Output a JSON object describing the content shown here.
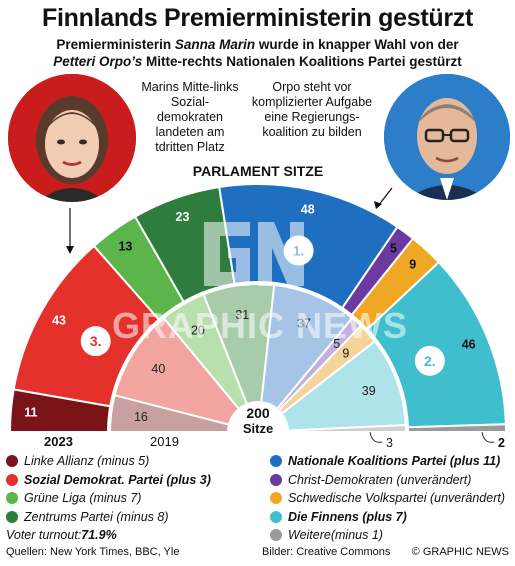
{
  "title": "Finnlands Premierministerin gestürzt",
  "subtitle": {
    "line1_pre": "Premierministerin ",
    "line1_name": "Sanna Marin",
    "line1_post": " wurde in knapper Wahl von der",
    "line2_name": "Petteri Orpo’s",
    "line2_post": " Mitte-rechts Nationalen Koalitions Partei gestürzt"
  },
  "notes": {
    "left": "Marins Mitte-links Sozial-demokraten landeten am tdritten Platz",
    "right": "Orpo steht vor komplizierter Aufgabe eine Regierungs-koalition zu bilden"
  },
  "chart_data": {
    "type": "pie",
    "variant": "parliament-semicircle",
    "title": "PARLAMENT SITZE",
    "total_seats": 200,
    "total_label": "Sitze",
    "series": [
      {
        "name": "2023",
        "parties": [
          {
            "key": "linke",
            "seats": 11
          },
          {
            "key": "sdp",
            "seats": 43
          },
          {
            "key": "gruene",
            "seats": 13
          },
          {
            "key": "zentrum",
            "seats": 23
          },
          {
            "key": "kok",
            "seats": 48
          },
          {
            "key": "kd",
            "seats": 5
          },
          {
            "key": "rkp",
            "seats": 9
          },
          {
            "key": "ps",
            "seats": 46
          },
          {
            "key": "weitere",
            "seats": 2
          }
        ]
      },
      {
        "name": "2019",
        "parties": [
          {
            "key": "linke",
            "seats": 16
          },
          {
            "key": "sdp",
            "seats": 40
          },
          {
            "key": "gruene",
            "seats": 20
          },
          {
            "key": "zentrum",
            "seats": 31
          },
          {
            "key": "kok",
            "seats": 37
          },
          {
            "key": "kd",
            "seats": 5
          },
          {
            "key": "rkp",
            "seats": 9
          },
          {
            "key": "ps",
            "seats": 39
          },
          {
            "key": "weitere",
            "seats": 3
          }
        ]
      }
    ],
    "ranks": [
      {
        "key": "kok",
        "label": "1."
      },
      {
        "key": "ps",
        "label": "2."
      },
      {
        "key": "sdp",
        "label": "3."
      }
    ]
  },
  "parties": {
    "linke": {
      "label": "Linke Allianz (minus 5)",
      "color": "#7b1419",
      "color_2019": "#c8a0a0",
      "bold": false
    },
    "sdp": {
      "label": "Sozial Demokrat. Partei (plus 3)",
      "color": "#e4312b",
      "color_2019": "#f2a4a0",
      "bold": true
    },
    "gruene": {
      "label": "Grüne Liga (minus 7)",
      "color": "#5cb54a",
      "color_2019": "#b9dfae",
      "bold": false
    },
    "zentrum": {
      "label": "Zentrums Partei (minus 8)",
      "color": "#2e7d3e",
      "color_2019": "#a8cba9",
      "bold": false
    },
    "kok": {
      "label": "Nationale Koalitions Partei (plus 11)",
      "color": "#1f6fc0",
      "color_2019": "#a6c4e6",
      "bold": true
    },
    "kd": {
      "label": "Christ-Demokraten (unverändert)",
      "color": "#6a3aa0",
      "color_2019": "#c3b0dc",
      "bold": false
    },
    "rkp": {
      "label": "Schwedische Volkspartei (unverändert)",
      "color": "#f0a824",
      "color_2019": "#f6d39a",
      "bold": false
    },
    "ps": {
      "label": "Die Finnens (plus 7)",
      "color": "#3fbfcd",
      "color_2019": "#aee3ea",
      "bold": true
    },
    "weitere": {
      "label": "Weitere(minus 1)",
      "color": "#9a9a9a",
      "color_2019": "#cfcfcf",
      "bold": false
    }
  },
  "legend_left_order": [
    "linke",
    "sdp",
    "gruene",
    "zentrum"
  ],
  "legend_right_order": [
    "kok",
    "kd",
    "rkp",
    "ps",
    "weitere"
  ],
  "turnout": {
    "label": "Voter turnout: ",
    "value": "71.9%"
  },
  "footer": {
    "sources": "Quellen: New York Times, BBC, Yle",
    "images": "Bilder: Creative Commons",
    "credit": "© GRAPHIC NEWS"
  },
  "watermark": "GRAPHIC NEWS"
}
